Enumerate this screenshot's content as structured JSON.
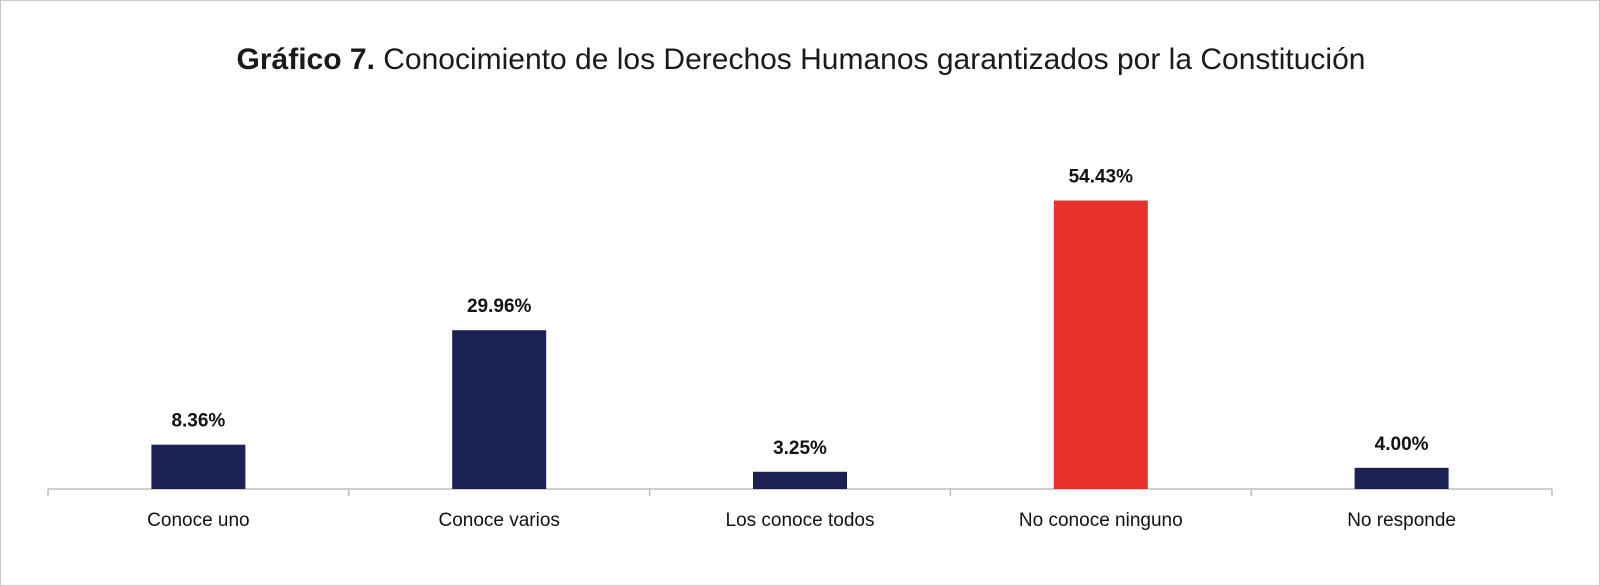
{
  "chart_data": {
    "type": "bar",
    "title_bold": "Gráfico 7.",
    "title": "Conocimiento de los Derechos Humanos garantizados por la Constitución",
    "categories": [
      "Conoce uno",
      "Conoce varios",
      "Los conoce todos",
      "No conoce ninguno",
      "No responde"
    ],
    "values": [
      8.36,
      29.96,
      3.25,
      54.43,
      4.0
    ],
    "value_labels": [
      "8.36%",
      "29.96%",
      "3.25%",
      "54.43%",
      "4.00%"
    ],
    "colors": [
      "#1c2155",
      "#1c2155",
      "#1c2155",
      "#e8312a",
      "#1c2155"
    ],
    "ylim": [
      0,
      60
    ],
    "grid": false,
    "legend": "none"
  }
}
